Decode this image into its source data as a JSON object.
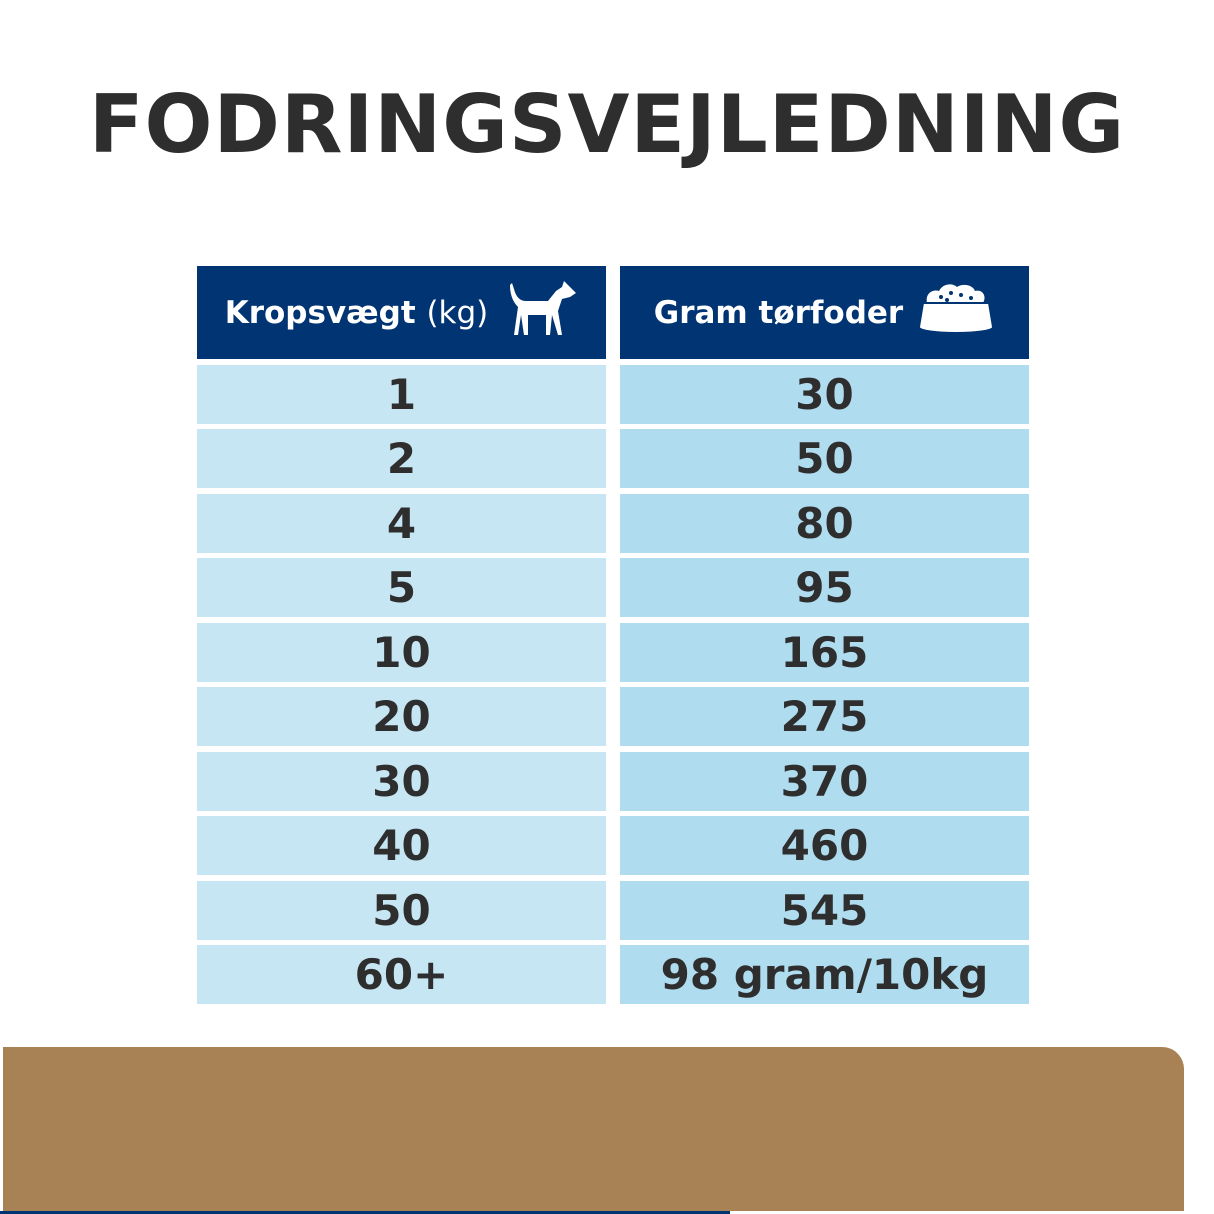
{
  "title": "FODRINGSVEJLEDNING",
  "table": {
    "headers": {
      "weight_bold": "Kropsvægt",
      "weight_unit": "(kg)",
      "food": "Gram tørfoder"
    },
    "icons": {
      "weight": "dog-icon",
      "food": "food-bowl-icon"
    },
    "rows": [
      {
        "weight": "1",
        "grams": "30"
      },
      {
        "weight": "2",
        "grams": "50"
      },
      {
        "weight": "4",
        "grams": "80"
      },
      {
        "weight": "5",
        "grams": "95"
      },
      {
        "weight": "10",
        "grams": "165"
      },
      {
        "weight": "20",
        "grams": "275"
      },
      {
        "weight": "30",
        "grams": "370"
      },
      {
        "weight": "40",
        "grams": "460"
      },
      {
        "weight": "50",
        "grams": "545"
      },
      {
        "weight": "60+",
        "grams": "98 gram/10kg"
      }
    ]
  },
  "colors": {
    "header": "#003473",
    "left_cell": "#c6e6f4",
    "right_cell": "#b0dcef",
    "band": "#a88255",
    "text": "#2e2e2e"
  }
}
